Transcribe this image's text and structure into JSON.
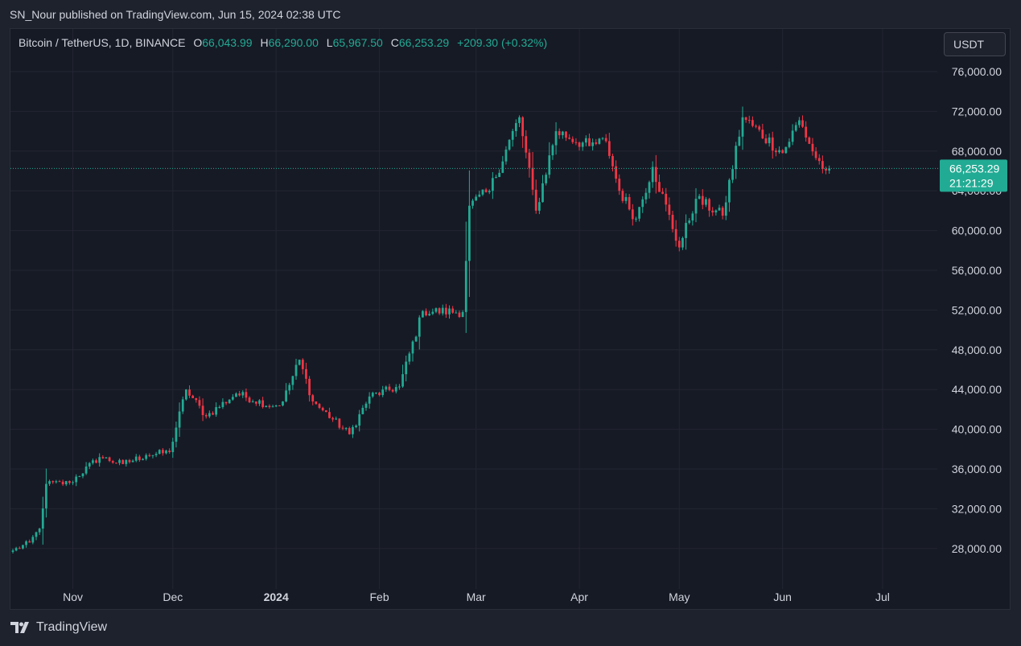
{
  "header": {
    "publish_text": "SN_Nour published on TradingView.com, Jun 15, 2024 02:38 UTC"
  },
  "legend": {
    "symbol": "Bitcoin / TetherUS, 1D, BINANCE",
    "open_label": "O",
    "open": "66,043.99",
    "high_label": "H",
    "high": "66,290.00",
    "low_label": "L",
    "low": "65,967.50",
    "close_label": "C",
    "close": "66,253.29",
    "change": "+209.30 (+0.32%)"
  },
  "currency_button": "USDT",
  "price_tag": {
    "price": "66,253.29",
    "countdown": "21:21:29"
  },
  "footer": {
    "brand": "TradingView",
    "logo_icon": "tradingview-logo-icon"
  },
  "colors": {
    "up": "#22ab94",
    "down": "#f23645",
    "background": "#161a25",
    "grid": "#232632",
    "text": "#d1d4dc",
    "price_line": "#22ab94"
  },
  "chart_data": {
    "type": "candlestick",
    "title": "Bitcoin / TetherUS, 1D, BINANCE",
    "ylim": [
      24000,
      78000
    ],
    "y_ticks": [
      "76,000.00",
      "72,000.00",
      "68,000.00",
      "64,000.00",
      "60,000.00",
      "56,000.00",
      "52,000.00",
      "48,000.00",
      "44,000.00",
      "40,000.00",
      "36,000.00",
      "32,000.00",
      "28,000.00"
    ],
    "x_ticks": [
      "Nov",
      "Dec",
      "2024",
      "Feb",
      "Mar",
      "Apr",
      "May",
      "Jun",
      "Jul"
    ],
    "last_price": 66253.29,
    "grid": true,
    "anchors": [
      [
        "2023-10-14",
        27800
      ],
      [
        "2023-10-19",
        28600
      ],
      [
        "2023-10-22",
        30000
      ],
      [
        "2023-10-24",
        34500
      ],
      [
        "2023-10-31",
        34600
      ],
      [
        "2023-11-09",
        37200
      ],
      [
        "2023-11-16",
        36500
      ],
      [
        "2023-11-23",
        37400
      ],
      [
        "2023-11-30",
        37700
      ],
      [
        "2023-12-05",
        44000
      ],
      [
        "2023-12-11",
        41300
      ],
      [
        "2023-12-20",
        43600
      ],
      [
        "2023-12-31",
        42300
      ],
      [
        "2024-01-03",
        42800
      ],
      [
        "2024-01-08",
        47000
      ],
      [
        "2024-01-12",
        42800
      ],
      [
        "2024-01-23",
        39500
      ],
      [
        "2024-01-29",
        43300
      ],
      [
        "2024-02-07",
        44300
      ],
      [
        "2024-02-14",
        51900
      ],
      [
        "2024-02-26",
        51800
      ],
      [
        "2024-02-28",
        62500
      ],
      [
        "2024-03-05",
        64000
      ],
      [
        "2024-03-14",
        71400
      ],
      [
        "2024-03-19",
        62000
      ],
      [
        "2024-03-25",
        70000
      ],
      [
        "2024-04-04",
        68500
      ],
      [
        "2024-04-09",
        69000
      ],
      [
        "2024-04-13",
        64000
      ],
      [
        "2024-04-18",
        61200
      ],
      [
        "2024-04-23",
        66400
      ],
      [
        "2024-05-01",
        58300
      ],
      [
        "2024-05-06",
        63200
      ],
      [
        "2024-05-14",
        61500
      ],
      [
        "2024-05-20",
        71400
      ],
      [
        "2024-06-01",
        67800
      ],
      [
        "2024-06-06",
        71100
      ],
      [
        "2024-06-11",
        67300
      ],
      [
        "2024-06-14",
        66043.99
      ],
      [
        "2024-06-15",
        66253.29
      ]
    ]
  }
}
